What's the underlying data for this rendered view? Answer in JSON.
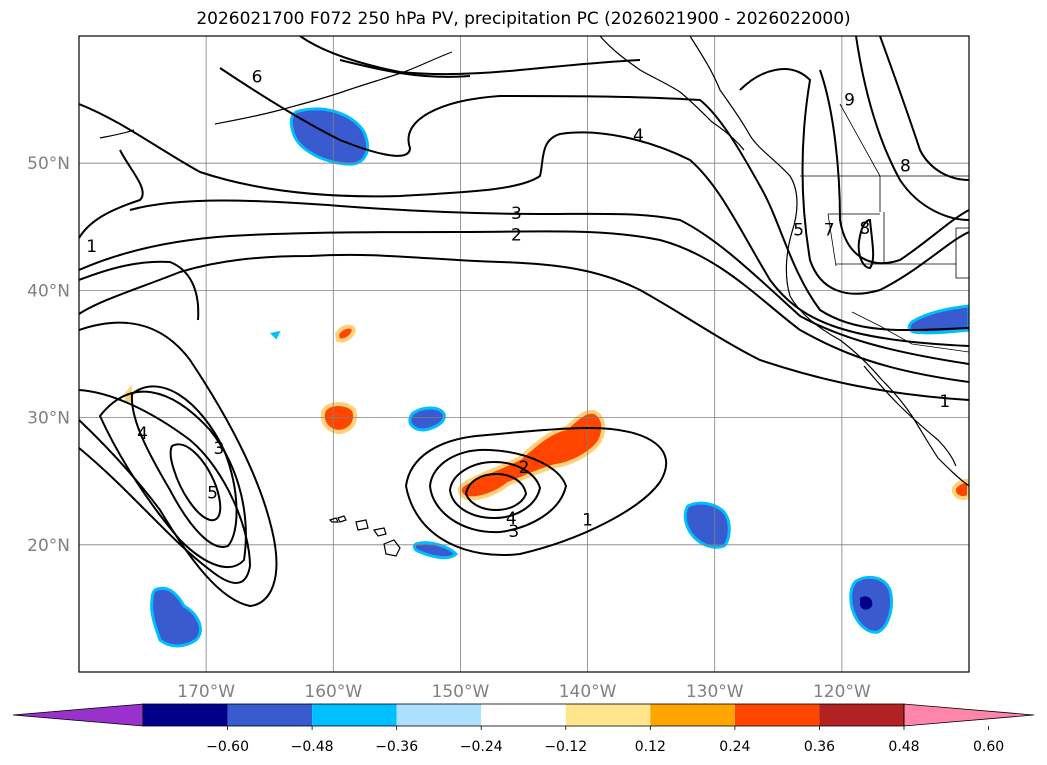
{
  "title": "2026021700 F072 250 hPa PV, precipitation PC (2026021900 - 2026022000)",
  "map": {
    "lon_range": [
      -180,
      -110
    ],
    "lat_range": [
      10,
      60
    ],
    "lat_labels": [
      "20°N",
      "30°N",
      "40°N",
      "50°N"
    ],
    "lat_values": [
      20,
      30,
      40,
      50
    ],
    "lon_labels": [
      "170°W",
      "160°W",
      "150°W",
      "140°W",
      "130°W",
      "120°W"
    ],
    "lon_values": [
      -170,
      -160,
      -150,
      -140,
      -130,
      -120
    ],
    "contour_labels": [
      {
        "text": "1",
        "lon": -179,
        "lat": 43.5
      },
      {
        "text": "4",
        "lon": -175,
        "lat": 28.8
      },
      {
        "text": "3",
        "lon": -169,
        "lat": 27.6
      },
      {
        "text": "5",
        "lon": -169.5,
        "lat": 24.1
      },
      {
        "text": "2",
        "lon": -145,
        "lat": 26.1
      },
      {
        "text": "4",
        "lon": -146,
        "lat": 22.1
      },
      {
        "text": "3",
        "lon": -145.8,
        "lat": 21.1
      },
      {
        "text": "1",
        "lon": -140,
        "lat": 22.0
      },
      {
        "text": "3",
        "lon": -145.6,
        "lat": 46.1
      },
      {
        "text": "2",
        "lon": -145.6,
        "lat": 44.4
      },
      {
        "text": "4",
        "lon": -136,
        "lat": 52.2
      },
      {
        "text": "6",
        "lon": -166,
        "lat": 56.8
      },
      {
        "text": "5",
        "lon": -123.4,
        "lat": 44.8
      },
      {
        "text": "7",
        "lon": -121,
        "lat": 44.8
      },
      {
        "text": "8",
        "lon": -118.2,
        "lat": 44.9
      },
      {
        "text": "8",
        "lon": -115,
        "lat": 49.8
      },
      {
        "text": "9",
        "lon": -119.4,
        "lat": 55.0
      },
      {
        "text": "1",
        "lon": -111.9,
        "lat": 31.3
      }
    ]
  },
  "colorbar": {
    "ticks": [
      "−0.60",
      "−0.48",
      "−0.36",
      "−0.24",
      "−0.12",
      "0.12",
      "0.24",
      "0.36",
      "0.48",
      "0.60"
    ],
    "colors": [
      "#9932cc",
      "#00008b",
      "#3a5bd0",
      "#00bfff",
      "#addfff",
      "#ffffff",
      "#ffe68c",
      "#ffa500",
      "#ff4500",
      "#b22222",
      "#ff85aa"
    ]
  },
  "palette": {
    "negative_fill": "#3a5bd0",
    "negative_edge": "#00bfff",
    "positive_fill": "#ff4500",
    "positive_edge": "#ffd27a",
    "deep_negative": "#00008b"
  }
}
